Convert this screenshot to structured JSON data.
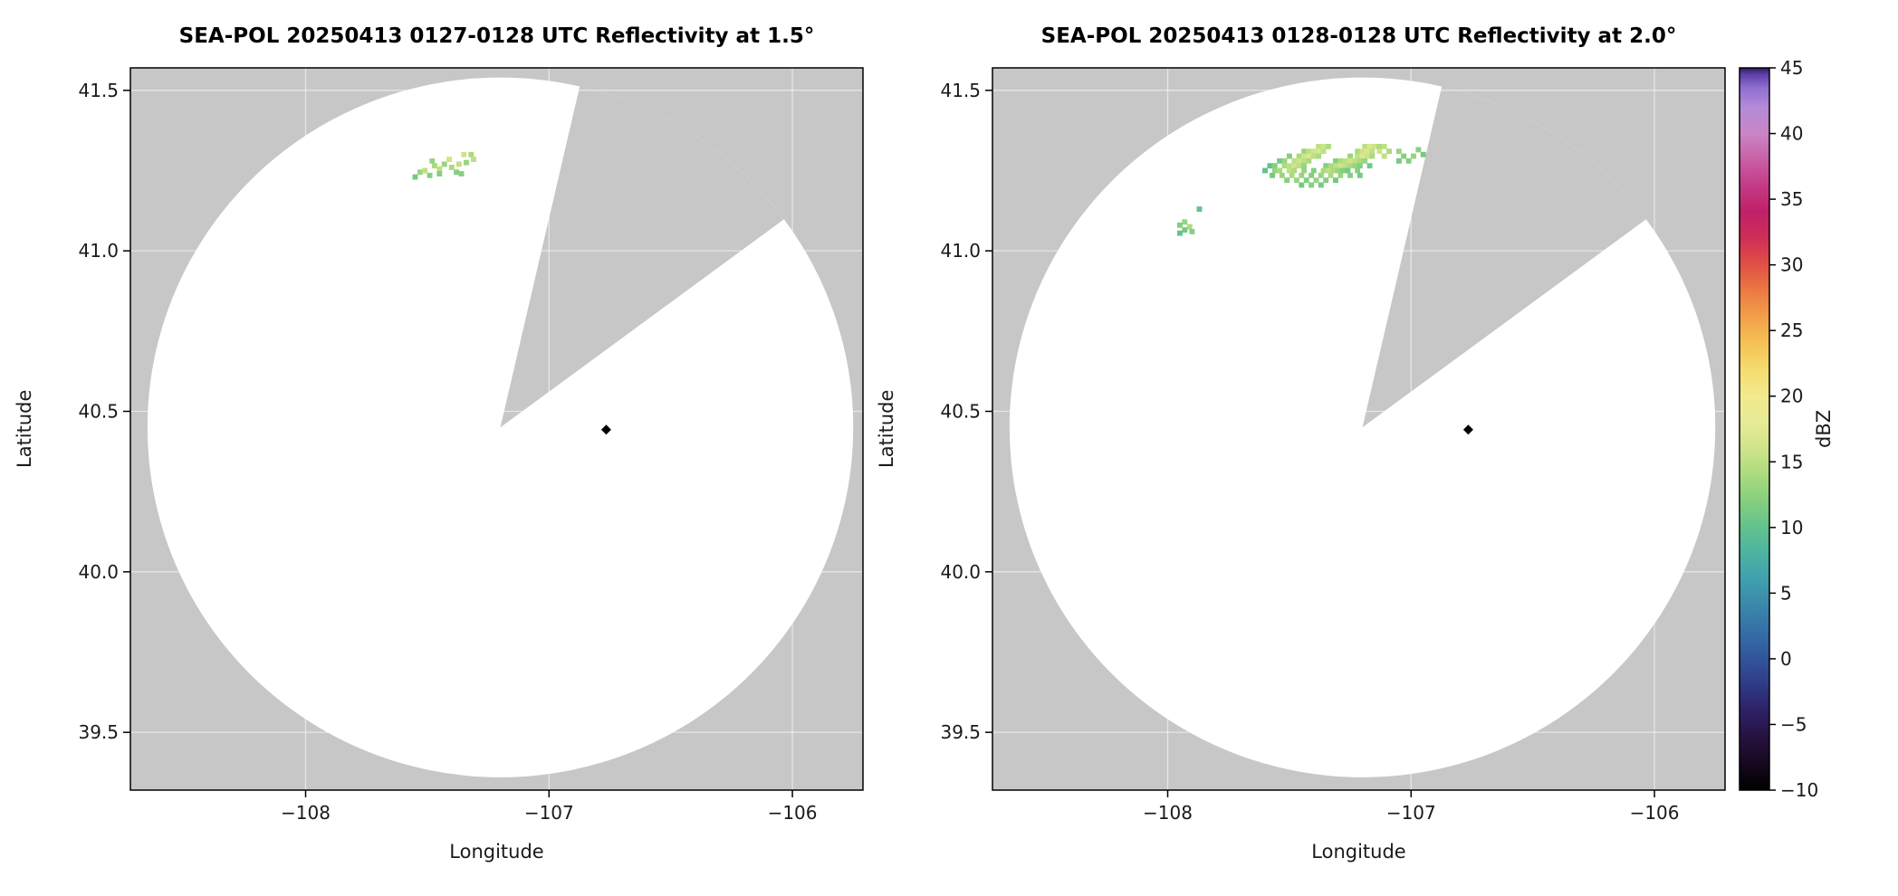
{
  "figure": {
    "background": "#ffffff",
    "outside_fill": "#c7c7c7",
    "grid_color": "#ffffff"
  },
  "colorbar": {
    "label": "dBZ",
    "vmin": -10,
    "vmax": 45,
    "ticks": [
      45,
      40,
      35,
      30,
      25,
      20,
      15,
      10,
      5,
      0,
      -5,
      -10
    ],
    "tick_labels": [
      "45",
      "40",
      "35",
      "30",
      "25",
      "20",
      "15",
      "10",
      "5",
      "0",
      "−5",
      "−10"
    ],
    "stops": [
      [
        -10,
        "#000000"
      ],
      [
        -8,
        "#16091f"
      ],
      [
        -6,
        "#26123f"
      ],
      [
        -4,
        "#2e2066"
      ],
      [
        -2,
        "#2f3a85"
      ],
      [
        0,
        "#32549b"
      ],
      [
        2,
        "#356ea6"
      ],
      [
        4,
        "#3a87ab"
      ],
      [
        6,
        "#409fae"
      ],
      [
        8,
        "#4bb3a2"
      ],
      [
        10,
        "#63c28d"
      ],
      [
        12,
        "#85cf7f"
      ],
      [
        14,
        "#abdb7e"
      ],
      [
        16,
        "#cfe48a"
      ],
      [
        18,
        "#e7ea96"
      ],
      [
        20,
        "#f2ea8d"
      ],
      [
        22,
        "#f5dc6e"
      ],
      [
        24,
        "#f5c255"
      ],
      [
        26,
        "#f2a04a"
      ],
      [
        28,
        "#ec7a44"
      ],
      [
        30,
        "#e05045"
      ],
      [
        32,
        "#cf2f55"
      ],
      [
        34,
        "#c02068"
      ],
      [
        36,
        "#c33a85"
      ],
      [
        38,
        "#c95fa5"
      ],
      [
        40,
        "#c985c4"
      ],
      [
        42,
        "#b48bd8"
      ],
      [
        43.5,
        "#8f6ecf"
      ],
      [
        44.5,
        "#5c3fa8"
      ],
      [
        45,
        "#2c1d63"
      ]
    ]
  },
  "chart_data": [
    {
      "type": "radar_ppi_pcolormesh",
      "title": "SEA-POL 20250413 0127-0128 UTC Reflectivity at 1.5°",
      "xlabel": "Longitude",
      "ylabel": "Latitude",
      "xlim": [
        -108.72,
        -105.71
      ],
      "ylim": [
        39.32,
        41.57
      ],
      "xticks": [
        -108,
        -107,
        -106
      ],
      "xtick_labels": [
        "−108",
        "−107",
        "−106"
      ],
      "yticks": [
        39.5,
        40.0,
        40.5,
        41.0,
        41.5
      ],
      "ytick_labels": [
        "39.5",
        "40.0",
        "40.5",
        "41.0",
        "41.5"
      ],
      "grid": true,
      "radar": {
        "center_lon": -107.2,
        "center_lat": 40.45,
        "radius_lon_deg": 1.45,
        "radius_lat_deg": 1.09,
        "missing_sector_azimuth_deg": [
          13,
          53.5
        ]
      },
      "site_marker": {
        "lon": -106.765,
        "lat": 40.443,
        "color": "#000000",
        "shape": "diamond"
      },
      "cells": {
        "cell_lon_deg": 0.022,
        "cell_lat_deg": 0.0165,
        "points_lon_lat_dbz": [
          [
            -107.53,
            41.245,
            13
          ],
          [
            -107.51,
            41.25,
            15
          ],
          [
            -107.49,
            41.235,
            12
          ],
          [
            -107.47,
            41.265,
            14
          ],
          [
            -107.45,
            41.255,
            15
          ],
          [
            -107.45,
            41.24,
            12
          ],
          [
            -107.43,
            41.27,
            13
          ],
          [
            -107.41,
            41.285,
            16
          ],
          [
            -107.4,
            41.26,
            14
          ],
          [
            -107.38,
            41.245,
            12
          ],
          [
            -107.37,
            41.27,
            15
          ],
          [
            -107.35,
            41.3,
            16
          ],
          [
            -107.34,
            41.275,
            13
          ],
          [
            -107.32,
            41.3,
            14
          ],
          [
            -107.31,
            41.285,
            15
          ],
          [
            -107.48,
            41.28,
            13
          ],
          [
            -107.55,
            41.23,
            11
          ],
          [
            -107.36,
            41.24,
            12
          ]
        ]
      }
    },
    {
      "type": "radar_ppi_pcolormesh",
      "title": "SEA-POL 20250413 0128-0128 UTC Reflectivity at 2.0°",
      "xlabel": "Longitude",
      "ylabel": "Latitude",
      "xlim": [
        -108.72,
        -105.71
      ],
      "ylim": [
        39.32,
        41.57
      ],
      "xticks": [
        -108,
        -107,
        -106
      ],
      "xtick_labels": [
        "−108",
        "−107",
        "−106"
      ],
      "yticks": [
        39.5,
        40.0,
        40.5,
        41.0,
        41.5
      ],
      "ytick_labels": [
        "39.5",
        "40.0",
        "40.5",
        "41.0",
        "41.5"
      ],
      "grid": true,
      "radar": {
        "center_lon": -107.2,
        "center_lat": 40.45,
        "radius_lon_deg": 1.45,
        "radius_lat_deg": 1.09,
        "missing_sector_azimuth_deg": [
          13,
          53.5
        ]
      },
      "site_marker": {
        "lon": -106.765,
        "lat": 40.443,
        "color": "#000000",
        "shape": "diamond"
      },
      "cells": {
        "cell_lon_deg": 0.022,
        "cell_lat_deg": 0.0165,
        "points_lon_lat_dbz": [
          [
            -107.38,
            41.325,
            15
          ],
          [
            -107.36,
            41.325,
            16
          ],
          [
            -107.34,
            41.325,
            14
          ],
          [
            -107.19,
            41.325,
            15
          ],
          [
            -107.17,
            41.325,
            17
          ],
          [
            -107.15,
            41.325,
            16
          ],
          [
            -107.13,
            41.325,
            14
          ],
          [
            -107.11,
            41.325,
            15
          ],
          [
            -107.44,
            41.31,
            13
          ],
          [
            -107.42,
            41.31,
            15
          ],
          [
            -107.4,
            41.31,
            16
          ],
          [
            -107.38,
            41.31,
            17
          ],
          [
            -107.36,
            41.31,
            15
          ],
          [
            -107.22,
            41.31,
            14
          ],
          [
            -107.2,
            41.31,
            16
          ],
          [
            -107.18,
            41.31,
            17
          ],
          [
            -107.16,
            41.31,
            15
          ],
          [
            -107.13,
            41.31,
            16
          ],
          [
            -107.09,
            41.31,
            14
          ],
          [
            -107.05,
            41.31,
            13
          ],
          [
            -107.5,
            41.295,
            12
          ],
          [
            -107.46,
            41.295,
            14
          ],
          [
            -107.44,
            41.295,
            16
          ],
          [
            -107.42,
            41.295,
            17
          ],
          [
            -107.4,
            41.295,
            15
          ],
          [
            -107.38,
            41.295,
            14
          ],
          [
            -107.25,
            41.295,
            13
          ],
          [
            -107.22,
            41.295,
            15
          ],
          [
            -107.2,
            41.295,
            17
          ],
          [
            -107.18,
            41.295,
            16
          ],
          [
            -107.16,
            41.295,
            14
          ],
          [
            -107.11,
            41.295,
            15
          ],
          [
            -107.03,
            41.295,
            12
          ],
          [
            -106.99,
            41.295,
            13
          ],
          [
            -107.54,
            41.28,
            11
          ],
          [
            -107.52,
            41.28,
            13
          ],
          [
            -107.48,
            41.28,
            15
          ],
          [
            -107.46,
            41.28,
            16
          ],
          [
            -107.44,
            41.28,
            15
          ],
          [
            -107.42,
            41.28,
            14
          ],
          [
            -107.31,
            41.28,
            12
          ],
          [
            -107.29,
            41.28,
            14
          ],
          [
            -107.27,
            41.28,
            15
          ],
          [
            -107.25,
            41.28,
            16
          ],
          [
            -107.23,
            41.28,
            15
          ],
          [
            -107.21,
            41.28,
            14
          ],
          [
            -107.19,
            41.28,
            13
          ],
          [
            -107.05,
            41.28,
            11
          ],
          [
            -107.01,
            41.28,
            12
          ],
          [
            -107.58,
            41.265,
            10
          ],
          [
            -107.56,
            41.265,
            12
          ],
          [
            -107.52,
            41.265,
            14
          ],
          [
            -107.5,
            41.265,
            15
          ],
          [
            -107.48,
            41.265,
            16
          ],
          [
            -107.46,
            41.265,
            15
          ],
          [
            -107.44,
            41.265,
            13
          ],
          [
            -107.35,
            41.265,
            12
          ],
          [
            -107.33,
            41.265,
            14
          ],
          [
            -107.31,
            41.265,
            15
          ],
          [
            -107.29,
            41.265,
            16
          ],
          [
            -107.27,
            41.265,
            15
          ],
          [
            -107.25,
            41.265,
            14
          ],
          [
            -107.23,
            41.265,
            13
          ],
          [
            -107.21,
            41.265,
            12
          ],
          [
            -107.17,
            41.265,
            11
          ],
          [
            -107.6,
            41.25,
            10
          ],
          [
            -107.56,
            41.25,
            13
          ],
          [
            -107.54,
            41.25,
            14
          ],
          [
            -107.5,
            41.25,
            15
          ],
          [
            -107.48,
            41.25,
            14
          ],
          [
            -107.44,
            41.25,
            13
          ],
          [
            -107.4,
            41.25,
            12
          ],
          [
            -107.36,
            41.25,
            14
          ],
          [
            -107.34,
            41.25,
            15
          ],
          [
            -107.32,
            41.25,
            14
          ],
          [
            -107.3,
            41.25,
            13
          ],
          [
            -107.28,
            41.25,
            12
          ],
          [
            -107.26,
            41.25,
            11
          ],
          [
            -107.22,
            41.25,
            12
          ],
          [
            -107.57,
            41.235,
            11
          ],
          [
            -107.53,
            41.235,
            13
          ],
          [
            -107.49,
            41.235,
            14
          ],
          [
            -107.45,
            41.235,
            13
          ],
          [
            -107.41,
            41.235,
            12
          ],
          [
            -107.37,
            41.235,
            13
          ],
          [
            -107.33,
            41.235,
            14
          ],
          [
            -107.29,
            41.235,
            13
          ],
          [
            -107.25,
            41.235,
            12
          ],
          [
            -107.21,
            41.235,
            11
          ],
          [
            -107.51,
            41.22,
            12
          ],
          [
            -107.47,
            41.22,
            13
          ],
          [
            -107.43,
            41.22,
            12
          ],
          [
            -107.39,
            41.22,
            13
          ],
          [
            -107.35,
            41.22,
            12
          ],
          [
            -107.31,
            41.22,
            11
          ],
          [
            -107.45,
            41.205,
            11
          ],
          [
            -107.41,
            41.205,
            12
          ],
          [
            -107.37,
            41.205,
            11
          ],
          [
            -107.95,
            41.08,
            12
          ],
          [
            -107.93,
            41.09,
            13
          ],
          [
            -107.91,
            41.075,
            14
          ],
          [
            -107.93,
            41.065,
            11
          ],
          [
            -107.95,
            41.055,
            10
          ],
          [
            -107.9,
            41.06,
            12
          ],
          [
            -107.87,
            41.13,
            10
          ],
          [
            -106.97,
            41.315,
            12
          ],
          [
            -106.95,
            41.3,
            11
          ]
        ]
      }
    }
  ]
}
